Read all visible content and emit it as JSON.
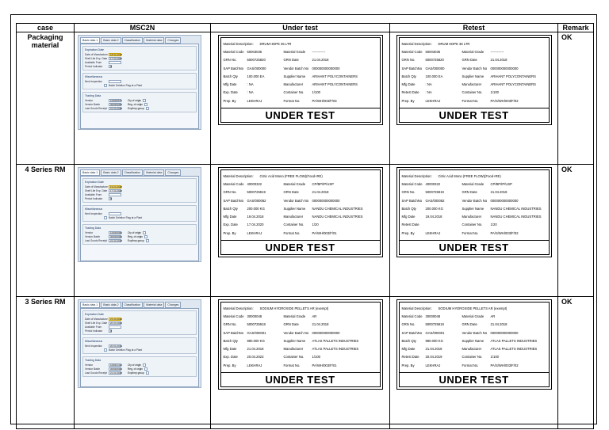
{
  "headers": {
    "case": "case",
    "msc2n": "MSC2N",
    "under_test": "Under test",
    "retest": "Retest",
    "remark": "Remark"
  },
  "sap_tabs": [
    "Basic data 1",
    "Basic data 2",
    "Classification",
    "Material data",
    "Changes"
  ],
  "sap_labels": {
    "expiration": "Expiration Date",
    "mfg": "Date of Manufacture",
    "shelf": "Shelf Life Exp. Date",
    "available": "Available From",
    "period": "Period Indicator",
    "misc": "Miscellaneous",
    "next_insp": "Next Inspection",
    "deletion": "Batch Deletion Flag at a Plant",
    "trading": "Trading Data",
    "vendor": "Vendor",
    "vendor_batch": "Vendor Batch",
    "last_gr": "Last Goods Receipt",
    "cty": "Cty of origin",
    "reg": "Reg. of origin",
    "exp_grp": "Exp/Imp group"
  },
  "rows": [
    {
      "case": "Packaging material",
      "remark": "OK",
      "sap": {
        "mfg": "18.04.2018",
        "shelf": "17.04.2020",
        "period": "D",
        "next_insp": "",
        "vendor": "100000571",
        "vendor_batch": "000000000",
        "last_gr": "21.04.2018"
      },
      "under_test": {
        "description_label": "Material Description:",
        "description": "DRUM HDPE 35 LTR",
        "rows": [
          [
            "Material Code",
            "50003036",
            "Material Grade",
            "------------"
          ],
          [
            "GRN No.",
            "5000725820",
            "GRN Date",
            "21.04.2018"
          ],
          [
            "SAP BatchNo",
            "GAS/000000",
            "Vendor Batch No",
            "000000000000000"
          ],
          [
            "Batch Qty",
            "100.000 EA",
            "Supplier Name",
            "ARIHANT POLYCONTAINERS"
          ],
          [
            "Mfg Date",
            ": NA",
            "Manufacturer",
            "ARIHANT POLYCONTAINERS"
          ],
          [
            "Exp. Date",
            ": NA",
            "Container No.",
            "1/100"
          ],
          [
            "Prep. By",
            "LEKHRAJ",
            "Format No.",
            "PA/WH/003/F/03"
          ]
        ],
        "stamp": "UNDER TEST"
      },
      "retest": {
        "description_label": "Material Description:",
        "description": "DRUM HDPE 35 LTR",
        "rows": [
          [
            "Material Code",
            "50003036",
            "Material Grade",
            "------------"
          ],
          [
            "GRN No.",
            "5000725820",
            "GRN Date",
            "21.04.2018"
          ],
          [
            "SAP BatchNo",
            "GAS/000000",
            "Vendor Batch No",
            "000000000000000"
          ],
          [
            "Batch Qty",
            "100.000 EA",
            "Supplier Name",
            "ARIHANT POLYCONTAINERS"
          ],
          [
            "Mfg Date",
            ": NA",
            "Manufacturer",
            "ARIHANT POLYCONTAINERS"
          ],
          [
            "Retest Date",
            ": NA",
            "Container No.",
            "1/100"
          ],
          [
            "Prep. By",
            "LEKHRAJ",
            "Format No.",
            "PA/S/WH/003/F/02"
          ]
        ],
        "stamp": "UNDER TEST"
      }
    },
    {
      "case": "4 Series RM",
      "remark": "OK",
      "sap": {
        "mfg": "19.04.2018",
        "shelf": "17.04.2020",
        "period": "D",
        "next_insp": "",
        "vendor": "100000064",
        "vendor_batch": "000000000",
        "last_gr": "21.04.2018"
      },
      "under_test": {
        "description_label": "Material Description:",
        "description": "Citric Acid Mono (FREE FLOW)(Food+RE)",
        "rows": [
          [
            "Material Code",
            "40000322",
            "Material Grade",
            "CP/BP/IP/USP"
          ],
          [
            "GRN No.",
            "5000725919",
            "GRN Date",
            "21.04.2018"
          ],
          [
            "SAP BatchNo",
            "GAS/000062",
            "Vendor Batch No",
            "000000000000000"
          ],
          [
            "Batch Qty",
            "200.000 KG",
            "Supplier Name",
            "NANDU CHEMICAL INDUSTRIES"
          ],
          [
            "Mfg Date",
            "19.04.2018",
            "Manufacturer",
            "NANDU CHEMICAL INDUSTRIES"
          ],
          [
            "Exp. Date",
            "17.04.2020",
            "Container No.",
            "1/20"
          ],
          [
            "Prep. By",
            "LEKHRAJ",
            "Format No.",
            "PA/WH/003/F/01"
          ]
        ],
        "stamp": "UNDER TEST"
      },
      "retest": {
        "description_label": "Material Description:",
        "description": "Citric Acid Mono (FREE FLOW)(Food+RE)",
        "rows": [
          [
            "Material Code",
            "40000322",
            "Material Grade",
            "CP/BP/IP/USP"
          ],
          [
            "GRN No.",
            "5000725919",
            "GRN Date",
            "21.04.2018"
          ],
          [
            "SAP BatchNo",
            "GAS/000062",
            "Vendor Batch No",
            "000000000000000"
          ],
          [
            "Batch Qty",
            "200.000 KG",
            "Supplier Name",
            "NANDU CHEMICAL INDUSTRIES"
          ],
          [
            "Mfg Date",
            "19.04.2018",
            "Manufacturer",
            "NANDU CHEMICAL INDUSTRIES"
          ],
          [
            "Retest Date",
            "",
            "Container No.",
            "1/20"
          ],
          [
            "Prep. By",
            "LEKHRAJ",
            "Format No.",
            "PA/S/WH/003/F/02"
          ]
        ],
        "stamp": "UNDER TEST"
      }
    },
    {
      "case": "3 Series RM",
      "remark": "OK",
      "sap": {
        "mfg": "21.04.2018",
        "shelf": "20.04.2023",
        "period": "D",
        "next_insp": "20.04.2019",
        "vendor": "100001412",
        "vendor_batch": "000000000",
        "last_gr": "21.04.2018"
      },
      "under_test": {
        "description_label": "Material Description:",
        "description": "SODIUM HYDROXIDE PELLETS AR (exempt)",
        "rows": [
          [
            "Material Code",
            "30000048",
            "Material Grade",
            "AR"
          ],
          [
            "GRN No.",
            "5000725918",
            "GRN Date",
            "21.04.2018"
          ],
          [
            "SAP BatchNo",
            "GAS/000001",
            "Vendor Batch No",
            "000000000000000"
          ],
          [
            "Batch Qty",
            "980.000 KG",
            "Supplier Name",
            "ATLAS PALLETS INDUSTRIES"
          ],
          [
            "Mfg Date",
            "21.04.2018",
            "Manufacturer",
            "ATLAS PALLETS INDUSTRIES"
          ],
          [
            "Exp. Date",
            "20.04.2023",
            "Container No.",
            "1/100"
          ],
          [
            "Prep. By",
            "LEKHRAJ",
            "Format No.",
            "PA/WH/003/F/01"
          ]
        ],
        "stamp": "UNDER TEST"
      },
      "retest": {
        "description_label": "Material Description:",
        "description": "SODIUM HYDROXIDE PELLETS AR (exempt)",
        "rows": [
          [
            "Material Code",
            "30000048",
            "Material Grade",
            "AR"
          ],
          [
            "GRN No.",
            "5000725918",
            "GRN Date",
            "21.04.2018"
          ],
          [
            "SAP BatchNo",
            "GAS/000001",
            "Vendor Batch No",
            "000000000000000"
          ],
          [
            "Batch Qty",
            "980.000 KG",
            "Supplier Name",
            "ATLAS PALLETS INDUSTRIES"
          ],
          [
            "Mfg Date",
            "21.04.2018",
            "Manufacturer",
            "ATLAS PALLETS INDUSTRIES"
          ],
          [
            "Retest Date",
            "20.04.2019",
            "Container No.",
            "1/100"
          ],
          [
            "Prep. By",
            "LEKHRAJ",
            "Format No.",
            "PA/S/WH/003/F/02"
          ]
        ],
        "stamp": "UNDER TEST"
      }
    }
  ]
}
